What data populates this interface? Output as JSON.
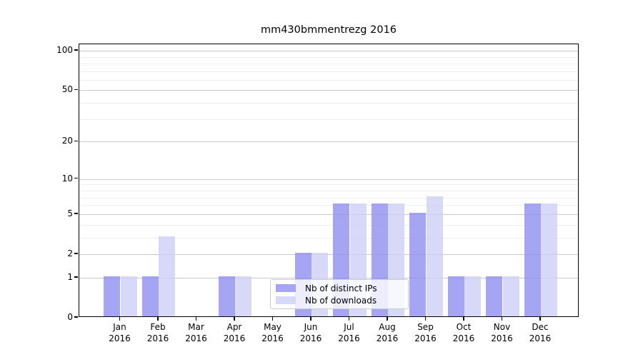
{
  "title": "mm430bmmentrezg 2016",
  "chart_data": {
    "type": "bar",
    "title": "mm430bmmentrezg 2016",
    "categories": [
      "Jan",
      "Feb",
      "Mar",
      "Apr",
      "May",
      "Jun",
      "Jul",
      "Aug",
      "Sep",
      "Oct",
      "Nov",
      "Dec"
    ],
    "category_year": "2016",
    "series": [
      {
        "name": "Nb of distinct IPs",
        "color": "rgba(142,142,240,0.8)",
        "values": [
          1,
          1,
          0,
          1,
          0,
          2,
          6,
          6,
          5,
          1,
          1,
          6
        ]
      },
      {
        "name": "Nb of downloads",
        "color": "rgba(206,206,247,0.8)",
        "values": [
          1,
          3,
          0,
          1,
          0,
          2,
          6,
          6,
          7,
          1,
          1,
          6
        ]
      }
    ],
    "y_axis": {
      "scale": "log1p",
      "major_ticks": [
        0,
        1,
        2,
        5,
        10,
        20,
        50,
        100
      ],
      "minor_ticks": [
        3,
        4,
        6,
        7,
        8,
        9,
        30,
        40,
        60,
        70,
        80,
        90
      ],
      "range_max": 112
    },
    "legend": {
      "position": "lower center",
      "entries": [
        "Nb of distinct IPs",
        "Nb of downloads"
      ]
    },
    "grid": true,
    "axis_color": "#000000",
    "major_grid_color": "#c9c9c9",
    "minor_grid_color": "#efefef"
  }
}
